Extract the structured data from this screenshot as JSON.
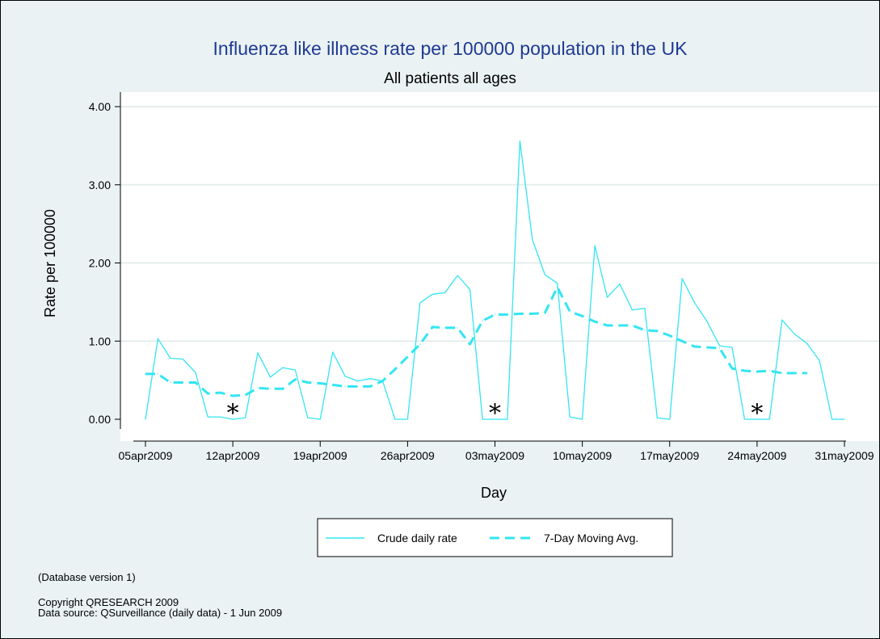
{
  "chart_data": {
    "type": "line",
    "title": "Influenza like illness rate per 100000 population in the UK",
    "subtitle": "All patients all ages",
    "xlabel": "Day",
    "ylabel": "Rate per 100000",
    "ylim": [
      0,
      4
    ],
    "yticks": [
      "0.00",
      "1.00",
      "2.00",
      "3.00",
      "4.00"
    ],
    "xlim": [
      "2009-04-05",
      "2009-05-31"
    ],
    "xticks": [
      "05apr2009",
      "12apr2009",
      "19apr2009",
      "26apr2009",
      "03may2009",
      "10may2009",
      "17may2009",
      "24may2009",
      "31may2009"
    ],
    "grid": true,
    "legend_position": "bottom",
    "series": [
      {
        "name": "Crude daily rate",
        "style": "solid",
        "color": "#33e5f2",
        "x": [
          "2009-04-05",
          "2009-04-06",
          "2009-04-07",
          "2009-04-08",
          "2009-04-09",
          "2009-04-10",
          "2009-04-11",
          "2009-04-12",
          "2009-04-13",
          "2009-04-14",
          "2009-04-15",
          "2009-04-16",
          "2009-04-17",
          "2009-04-18",
          "2009-04-19",
          "2009-04-20",
          "2009-04-21",
          "2009-04-22",
          "2009-04-23",
          "2009-04-24",
          "2009-04-25",
          "2009-04-26",
          "2009-04-27",
          "2009-04-28",
          "2009-04-29",
          "2009-04-30",
          "2009-05-01",
          "2009-05-02",
          "2009-05-03",
          "2009-05-04",
          "2009-05-05",
          "2009-05-06",
          "2009-05-07",
          "2009-05-08",
          "2009-05-09",
          "2009-05-10",
          "2009-05-11",
          "2009-05-12",
          "2009-05-13",
          "2009-05-14",
          "2009-05-15",
          "2009-05-16",
          "2009-05-17",
          "2009-05-18",
          "2009-05-19",
          "2009-05-20",
          "2009-05-21",
          "2009-05-22",
          "2009-05-23",
          "2009-05-24",
          "2009-05-25",
          "2009-05-26",
          "2009-05-27",
          "2009-05-28",
          "2009-05-29",
          "2009-05-30",
          "2009-05-31"
        ],
        "values": [
          0.0,
          1.03,
          0.78,
          0.77,
          0.6,
          0.03,
          0.03,
          0.0,
          0.02,
          0.85,
          0.54,
          0.66,
          0.63,
          0.02,
          0.0,
          0.86,
          0.55,
          0.49,
          0.52,
          0.49,
          0.0,
          0.0,
          1.49,
          1.6,
          1.62,
          1.84,
          1.66,
          0.0,
          0.0,
          0.0,
          3.56,
          2.3,
          1.85,
          1.74,
          0.03,
          0.0,
          2.22,
          1.56,
          1.73,
          1.4,
          1.42,
          0.02,
          0.0,
          1.8,
          1.49,
          1.25,
          0.94,
          0.92,
          0.0,
          0.0,
          0.0,
          1.27,
          1.09,
          0.97,
          0.75,
          0.0,
          0.0
        ]
      },
      {
        "name": "7-Day Moving Avg.",
        "style": "dashed",
        "color": "#33e5f2",
        "x": [
          "2009-04-05",
          "2009-04-06",
          "2009-04-07",
          "2009-04-08",
          "2009-04-09",
          "2009-04-10",
          "2009-04-11",
          "2009-04-12",
          "2009-04-13",
          "2009-04-14",
          "2009-04-15",
          "2009-04-16",
          "2009-04-17",
          "2009-04-18",
          "2009-04-19",
          "2009-04-20",
          "2009-04-21",
          "2009-04-22",
          "2009-04-23",
          "2009-04-24",
          "2009-04-25",
          "2009-04-26",
          "2009-04-27",
          "2009-04-28",
          "2009-04-29",
          "2009-04-30",
          "2009-05-01",
          "2009-05-02",
          "2009-05-03",
          "2009-05-04",
          "2009-05-05",
          "2009-05-06",
          "2009-05-07",
          "2009-05-08",
          "2009-05-09",
          "2009-05-10",
          "2009-05-11",
          "2009-05-12",
          "2009-05-13",
          "2009-05-14",
          "2009-05-15",
          "2009-05-16",
          "2009-05-17",
          "2009-05-18",
          "2009-05-19",
          "2009-05-20",
          "2009-05-21",
          "2009-05-22",
          "2009-05-23",
          "2009-05-24",
          "2009-05-25",
          "2009-05-26",
          "2009-05-27",
          "2009-05-28"
        ],
        "values": [
          0.58,
          0.58,
          0.47,
          0.47,
          0.47,
          0.33,
          0.34,
          0.3,
          0.31,
          0.4,
          0.39,
          0.39,
          0.51,
          0.47,
          0.46,
          0.44,
          0.42,
          0.42,
          0.42,
          0.49,
          0.64,
          0.8,
          0.96,
          1.18,
          1.17,
          1.17,
          0.96,
          1.26,
          1.34,
          1.34,
          1.35,
          1.35,
          1.36,
          1.69,
          1.38,
          1.32,
          1.25,
          1.2,
          1.2,
          1.2,
          1.14,
          1.13,
          1.07,
          1.0,
          0.93,
          0.92,
          0.91,
          0.65,
          0.62,
          0.61,
          0.62,
          0.59,
          0.59,
          0.59
        ]
      }
    ],
    "annotations": [
      {
        "label": "*",
        "x": "2009-04-12",
        "y": 0.12
      },
      {
        "label": "*",
        "x": "2009-05-03",
        "y": 0.12
      },
      {
        "label": "*",
        "x": "2009-05-24",
        "y": 0.12
      }
    ]
  },
  "footer": {
    "database_version": "(Database version 1)",
    "copyright": "Copyright QRESEARCH 2009",
    "data_source": "Data source: QSurveillance (daily data) - 1 Jun 2009"
  }
}
